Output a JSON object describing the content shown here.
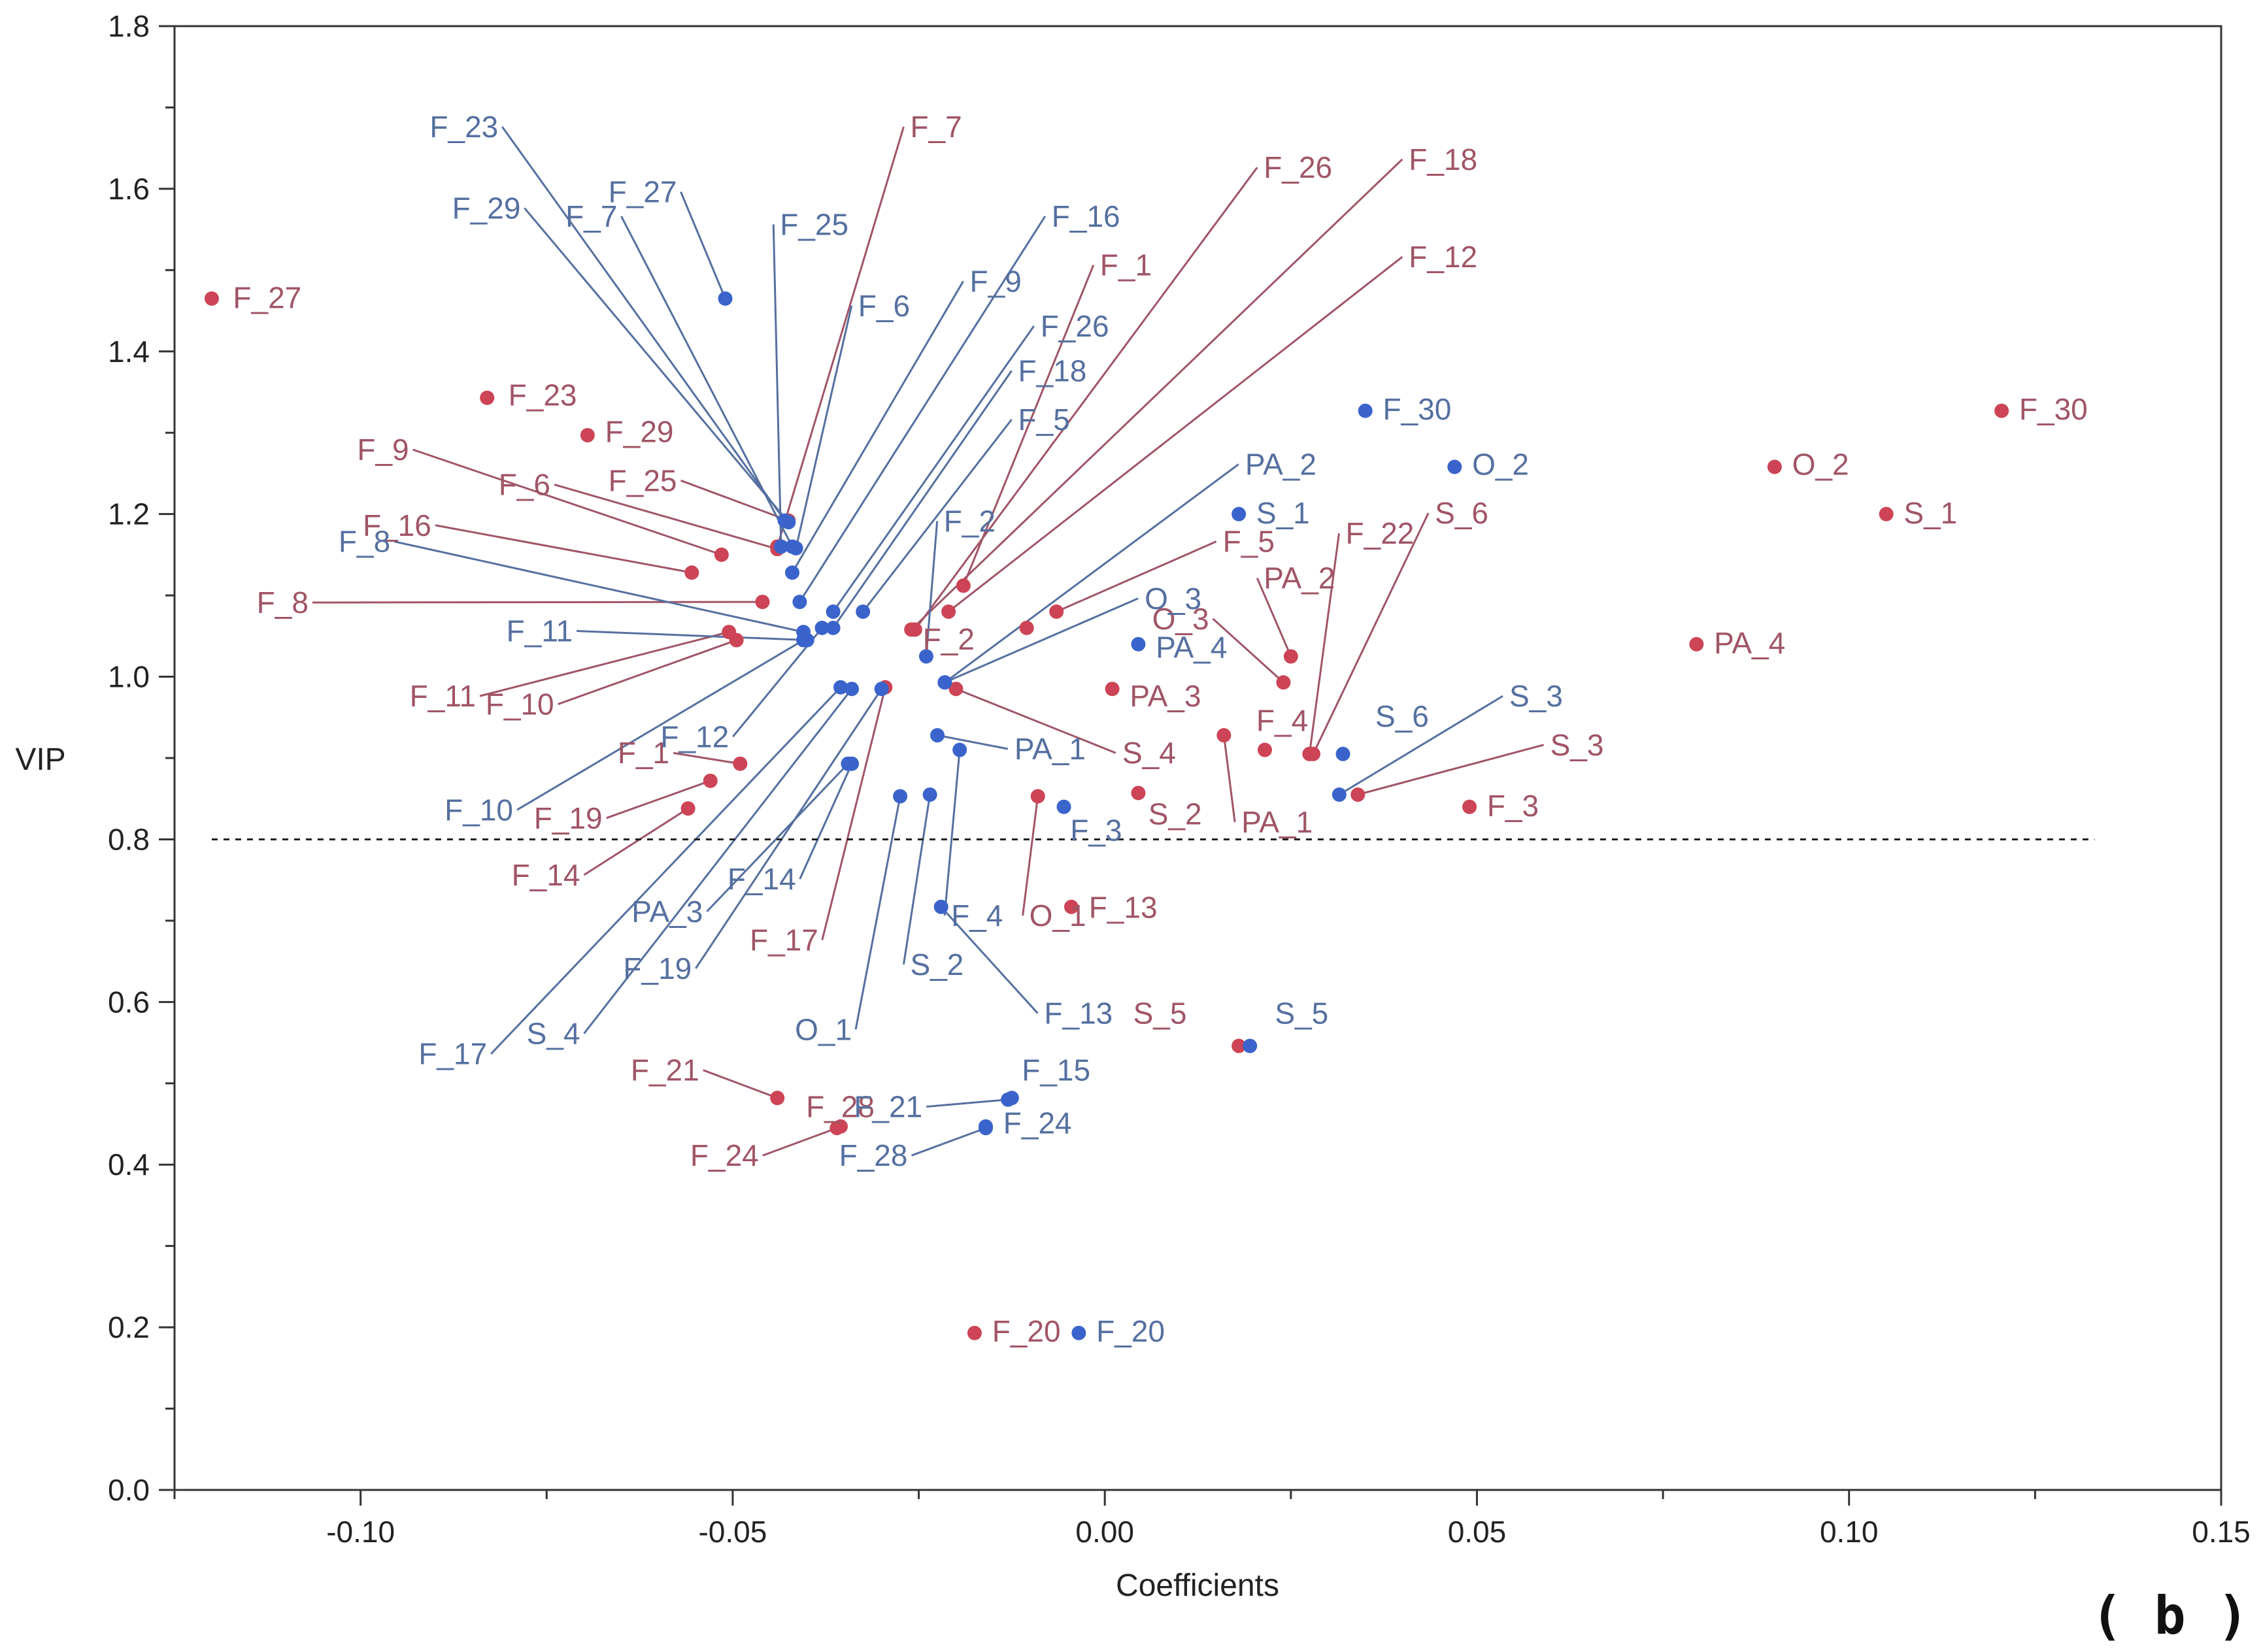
{
  "chart_data": {
    "type": "scatter",
    "xlabel": "Coefficients",
    "ylabel": "VIP",
    "panel_label": "( b )",
    "xlim": [
      -0.125,
      0.15
    ],
    "ylim": [
      0.0,
      1.8
    ],
    "xticks": [
      -0.1,
      -0.05,
      0.0,
      0.05,
      0.1,
      0.15
    ],
    "xtick_labels": [
      "-0.10",
      "-0.05",
      "0.00",
      "0.05",
      "0.10",
      "0.15"
    ],
    "yticks": [
      0.0,
      0.2,
      0.4,
      0.6,
      0.8,
      1.0,
      1.2,
      1.4,
      1.6,
      1.8
    ],
    "ytick_labels": [
      "0.0",
      "0.2",
      "0.4",
      "0.6",
      "0.8",
      "1.0",
      "1.2",
      "1.4",
      "1.6",
      "1.8"
    ],
    "threshold": 0.8,
    "series": [
      {
        "name": "red",
        "color": "#cc4455",
        "label_color": "#a05566",
        "points": [
          {
            "label": "F_27",
            "x": -0.12,
            "y": 1.465,
            "lx": -0.1175,
            "ly": 1.455
          },
          {
            "label": "F_23",
            "x": -0.083,
            "y": 1.343,
            "lx": -0.0805,
            "ly": 1.335
          },
          {
            "label": "F_29",
            "x": -0.0695,
            "y": 1.297,
            "lx": -0.0675,
            "ly": 1.29
          },
          {
            "label": "F_9",
            "x": -0.0515,
            "y": 1.15,
            "lx": -0.0935,
            "ly": 1.268
          },
          {
            "label": "F_6",
            "x": -0.044,
            "y": 1.157,
            "lx": -0.0745,
            "ly": 1.225
          },
          {
            "label": "F_25",
            "x": -0.0425,
            "y": 1.192,
            "lx": -0.0575,
            "ly": 1.23
          },
          {
            "label": "F_16",
            "x": -0.0555,
            "y": 1.128,
            "lx": -0.0905,
            "ly": 1.175
          },
          {
            "label": "F_8",
            "x": -0.046,
            "y": 1.092,
            "lx": -0.107,
            "ly": 1.08
          },
          {
            "label": "F_11",
            "x": -0.0505,
            "y": 1.055,
            "lx": -0.0845,
            "ly": 0.965
          },
          {
            "label": "F_10",
            "x": -0.0495,
            "y": 1.045,
            "lx": -0.074,
            "ly": 0.955
          },
          {
            "label": "F_1",
            "x": -0.049,
            "y": 0.893,
            "lx": -0.0585,
            "ly": 0.895
          },
          {
            "label": "F_19",
            "x": -0.053,
            "y": 0.872,
            "lx": -0.0675,
            "ly": 0.815
          },
          {
            "label": "F_14",
            "x": -0.056,
            "y": 0.838,
            "lx": -0.0705,
            "ly": 0.745
          },
          {
            "label": "F_17",
            "x": -0.0295,
            "y": 0.987,
            "lx": -0.0385,
            "ly": 0.665
          },
          {
            "label": "F_7",
            "x": -0.044,
            "y": 1.16,
            "lx": -0.0265,
            "ly": 1.665
          },
          {
            "label": "F_26",
            "x": -0.0255,
            "y": 1.058,
            "lx": 0.021,
            "ly": 1.615
          },
          {
            "label": "F_18",
            "x": -0.026,
            "y": 1.058,
            "lx": 0.0405,
            "ly": 1.625
          },
          {
            "label": "F_12",
            "x": -0.021,
            "y": 1.08,
            "lx": 0.0405,
            "ly": 1.505
          },
          {
            "label": "F_1",
            "x": -0.019,
            "y": 1.112,
            "lx": -0.001,
            "ly": 1.495
          },
          {
            "label": "F_5",
            "x": -0.0065,
            "y": 1.08,
            "lx": 0.0155,
            "ly": 1.155
          },
          {
            "label": "F_2",
            "x": -0.0105,
            "y": 1.06,
            "lx": -0.0175,
            "ly": 1.035
          },
          {
            "label": "PA_3",
            "x": 0.001,
            "y": 0.985,
            "lx": 0.003,
            "ly": 0.965
          },
          {
            "label": "S_4",
            "x": -0.02,
            "y": 0.985,
            "lx": 0.002,
            "ly": 0.895
          },
          {
            "label": "S_2",
            "x": 0.0045,
            "y": 0.857,
            "lx": 0.0055,
            "ly": 0.82
          },
          {
            "label": "O_1",
            "x": -0.009,
            "y": 0.853,
            "lx": -0.0105,
            "ly": 0.695
          },
          {
            "label": "F_13",
            "x": -0.0045,
            "y": 0.717,
            "lx": -0.0025,
            "ly": 0.705
          },
          {
            "label": "PA_2",
            "x": 0.025,
            "y": 1.025,
            "lx": 0.021,
            "ly": 1.11
          },
          {
            "label": "O_3",
            "x": 0.024,
            "y": 0.993,
            "lx": 0.014,
            "ly": 1.06
          },
          {
            "label": "F_22",
            "x": 0.0275,
            "y": 0.905,
            "lx": 0.032,
            "ly": 1.165
          },
          {
            "label": "S_6",
            "x": 0.028,
            "y": 0.905,
            "lx": 0.044,
            "ly": 1.19
          },
          {
            "label": "F_4",
            "x": 0.0215,
            "y": 0.91,
            "lx": 0.02,
            "ly": 0.935
          },
          {
            "label": "PA_1",
            "x": 0.016,
            "y": 0.928,
            "lx": 0.018,
            "ly": 0.81
          },
          {
            "label": "S_3",
            "x": 0.034,
            "y": 0.855,
            "lx": 0.0595,
            "ly": 0.905
          },
          {
            "label": "F_3",
            "x": 0.049,
            "y": 0.84,
            "lx": 0.051,
            "ly": 0.83
          },
          {
            "label": "F_30",
            "x": 0.1205,
            "y": 1.327,
            "lx": 0.1225,
            "ly": 1.318
          },
          {
            "label": "O_2",
            "x": 0.09,
            "y": 1.258,
            "lx": 0.092,
            "ly": 1.25
          },
          {
            "label": "S_1",
            "x": 0.105,
            "y": 1.2,
            "lx": 0.107,
            "ly": 1.19
          },
          {
            "label": "PA_4",
            "x": 0.0795,
            "y": 1.04,
            "lx": 0.0815,
            "ly": 1.03
          },
          {
            "label": "S_5",
            "x": 0.018,
            "y": 0.546,
            "lx": 0.011,
            "ly": 0.575
          },
          {
            "label": "F_21",
            "x": -0.044,
            "y": 0.482,
            "lx": -0.0545,
            "ly": 0.505
          },
          {
            "label": "F_28",
            "x": -0.0355,
            "y": 0.447,
            "lx": -0.0405,
            "ly": 0.46
          },
          {
            "label": "F_24",
            "x": -0.036,
            "y": 0.445,
            "lx": -0.0465,
            "ly": 0.4
          },
          {
            "label": "F_20",
            "x": -0.0175,
            "y": 0.193,
            "lx": -0.0155,
            "ly": 0.184
          }
        ]
      },
      {
        "name": "blue",
        "color": "#3a64cc",
        "label_color": "#5570a0",
        "points": [
          {
            "label": "F_23",
            "x": -0.043,
            "y": 1.192,
            "lx": -0.0815,
            "ly": 1.665
          },
          {
            "label": "F_29",
            "x": -0.0425,
            "y": 1.19,
            "lx": -0.0785,
            "ly": 1.565
          },
          {
            "label": "F_7",
            "x": -0.042,
            "y": 1.16,
            "lx": -0.0655,
            "ly": 1.555
          },
          {
            "label": "F_27",
            "x": -0.051,
            "y": 1.465,
            "lx": -0.0575,
            "ly": 1.585
          },
          {
            "label": "F_25",
            "x": -0.0435,
            "y": 1.16,
            "lx": -0.044,
            "ly": 1.545
          },
          {
            "label": "F_6",
            "x": -0.0415,
            "y": 1.158,
            "lx": -0.0335,
            "ly": 1.445
          },
          {
            "label": "F_9",
            "x": -0.042,
            "y": 1.128,
            "lx": -0.0185,
            "ly": 1.475
          },
          {
            "label": "F_16",
            "x": -0.041,
            "y": 1.092,
            "lx": -0.0075,
            "ly": 1.555
          },
          {
            "label": "F_26",
            "x": -0.0365,
            "y": 1.08,
            "lx": -0.009,
            "ly": 1.42
          },
          {
            "label": "F_18",
            "x": -0.0365,
            "y": 1.06,
            "lx": -0.012,
            "ly": 1.365
          },
          {
            "label": "F_5",
            "x": -0.0325,
            "y": 1.08,
            "lx": -0.012,
            "ly": 1.305
          },
          {
            "label": "F_2",
            "x": -0.024,
            "y": 1.025,
            "lx": -0.022,
            "ly": 1.18
          },
          {
            "label": "PA_2",
            "x": -0.0215,
            "y": 0.993,
            "lx": 0.0185,
            "ly": 1.25
          },
          {
            "label": "O_3",
            "x": -0.0215,
            "y": 0.993,
            "lx": 0.005,
            "ly": 1.085
          },
          {
            "label": "PA_4",
            "x": 0.0045,
            "y": 1.04,
            "lx": 0.0065,
            "ly": 1.025
          },
          {
            "label": "F_8",
            "x": -0.0405,
            "y": 1.055,
            "lx": -0.096,
            "ly": 1.155
          },
          {
            "label": "F_11",
            "x": -0.04,
            "y": 1.045,
            "lx": -0.0715,
            "ly": 1.045
          },
          {
            "label": "F_12",
            "x": -0.038,
            "y": 1.06,
            "lx": -0.0505,
            "ly": 0.915
          },
          {
            "label": "F_10",
            "x": -0.0405,
            "y": 1.045,
            "lx": -0.0795,
            "ly": 0.825
          },
          {
            "label": "F_17",
            "x": -0.0355,
            "y": 0.987,
            "lx": -0.083,
            "ly": 0.525
          },
          {
            "label": "S_4",
            "x": -0.034,
            "y": 0.985,
            "lx": -0.0705,
            "ly": 0.55
          },
          {
            "label": "PA_3",
            "x": -0.0345,
            "y": 0.893,
            "lx": -0.054,
            "ly": 0.7
          },
          {
            "label": "F_19",
            "x": -0.03,
            "y": 0.985,
            "lx": -0.0555,
            "ly": 0.63
          },
          {
            "label": "F_14",
            "x": -0.034,
            "y": 0.893,
            "lx": -0.0415,
            "ly": 0.74
          },
          {
            "label": "PA_1",
            "x": -0.0225,
            "y": 0.928,
            "lx": -0.0125,
            "ly": 0.9
          },
          {
            "label": "F_3",
            "x": -0.0055,
            "y": 0.84,
            "lx": -0.005,
            "ly": 0.8
          },
          {
            "label": "F_4",
            "x": -0.0195,
            "y": 0.91,
            "lx": -0.021,
            "ly": 0.695
          },
          {
            "label": "S_2",
            "x": -0.0235,
            "y": 0.855,
            "lx": -0.0265,
            "ly": 0.635
          },
          {
            "label": "O_1",
            "x": -0.0275,
            "y": 0.853,
            "lx": -0.034,
            "ly": 0.555
          },
          {
            "label": "F_13",
            "x": -0.022,
            "y": 0.717,
            "lx": -0.0085,
            "ly": 0.575
          },
          {
            "label": "F_30",
            "x": 0.035,
            "y": 1.327,
            "lx": 0.037,
            "ly": 1.318
          },
          {
            "label": "O_2",
            "x": 0.047,
            "y": 1.258,
            "lx": 0.049,
            "ly": 1.25
          },
          {
            "label": "S_1",
            "x": 0.018,
            "y": 1.2,
            "lx": 0.02,
            "ly": 1.19
          },
          {
            "label": "S_6",
            "x": 0.032,
            "y": 0.905,
            "lx": 0.036,
            "ly": 0.94
          },
          {
            "label": "S_3",
            "x": 0.0315,
            "y": 0.855,
            "lx": 0.054,
            "ly": 0.965
          },
          {
            "label": "S_5",
            "x": 0.0195,
            "y": 0.546,
            "lx": 0.0225,
            "ly": 0.575
          },
          {
            "label": "F_15",
            "x": -0.0125,
            "y": 0.482,
            "lx": -0.0115,
            "ly": 0.505
          },
          {
            "label": "F_21",
            "x": -0.013,
            "y": 0.48,
            "lx": -0.0245,
            "ly": 0.46
          },
          {
            "label": "F_24",
            "x": -0.016,
            "y": 0.447,
            "lx": -0.014,
            "ly": 0.44
          },
          {
            "label": "F_28",
            "x": -0.016,
            "y": 0.445,
            "lx": -0.0265,
            "ly": 0.4
          },
          {
            "label": "F_20",
            "x": -0.0035,
            "y": 0.193,
            "lx": -0.0015,
            "ly": 0.184
          }
        ]
      }
    ]
  }
}
